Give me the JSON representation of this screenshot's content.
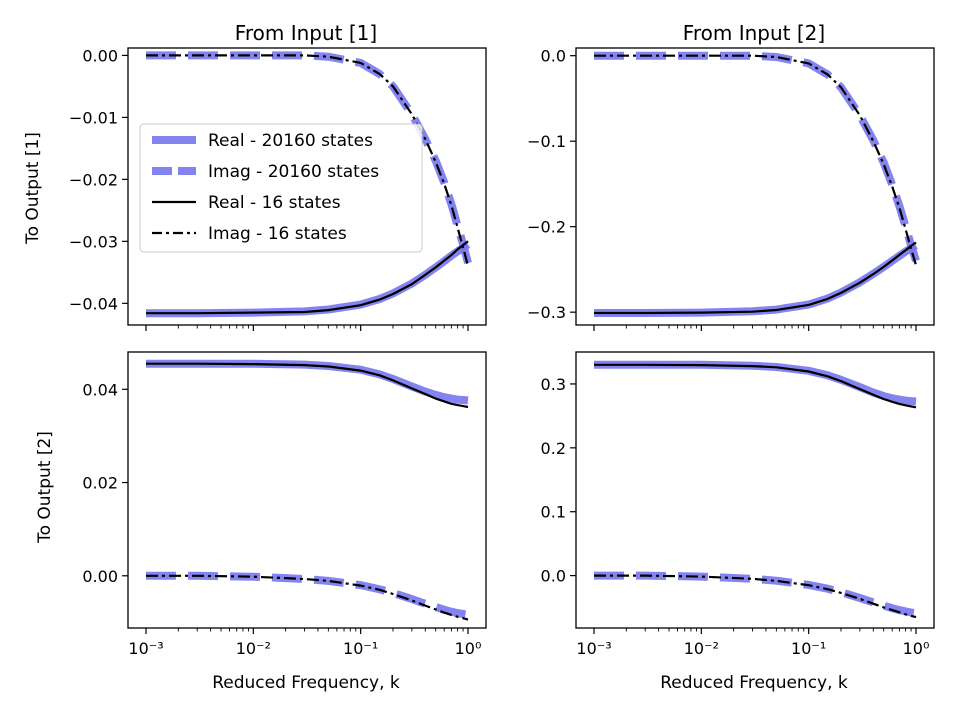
{
  "chart_data": [
    {
      "type": "line",
      "title": "From Input [1]",
      "xlabel": "",
      "ylabel": "To Output [1]",
      "xscale": "log",
      "xlim": [
        0.001,
        1.0
      ],
      "ylim": [
        -0.0435,
        0.0012
      ],
      "yticks": [
        0.0,
        -0.01,
        -0.02,
        -0.03,
        -0.04
      ],
      "ytick_labels": [
        "0.00",
        "−0.01",
        "−0.02",
        "−0.03",
        "−0.04"
      ],
      "xtick_labels": false,
      "grid": false,
      "legend": true,
      "legend_placement": "center-left",
      "series": [
        {
          "name": "Real - 20160 states",
          "style": "thick-solid",
          "color": "#7777ee",
          "x": [
            0.001,
            0.003,
            0.01,
            0.03,
            0.05,
            0.1,
            0.15,
            0.2,
            0.3,
            0.4,
            0.5,
            0.6,
            0.7,
            0.8,
            0.9,
            1.0
          ],
          "y": [
            -0.0416,
            -0.0416,
            -0.0415,
            -0.0413,
            -0.041,
            -0.0402,
            -0.0393,
            -0.0384,
            -0.0368,
            -0.0354,
            -0.0342,
            -0.0332,
            -0.0323,
            -0.0316,
            -0.031,
            -0.0305
          ]
        },
        {
          "name": "Imag - 20160 states",
          "style": "thick-dashed",
          "color": "#7777ee",
          "x": [
            0.001,
            0.003,
            0.01,
            0.03,
            0.05,
            0.1,
            0.15,
            0.2,
            0.3,
            0.4,
            0.5,
            0.6,
            0.7,
            0.8,
            0.9,
            1.0
          ],
          "y": [
            0.0,
            0.0,
            0.0,
            0.0,
            -0.0002,
            -0.0012,
            -0.003,
            -0.005,
            -0.0095,
            -0.0135,
            -0.017,
            -0.0205,
            -0.024,
            -0.0275,
            -0.0305,
            -0.0335
          ]
        },
        {
          "name": "Real - 16 states",
          "style": "solid",
          "color": "#000000",
          "x": [
            0.001,
            0.003,
            0.01,
            0.03,
            0.05,
            0.1,
            0.15,
            0.2,
            0.3,
            0.4,
            0.5,
            0.6,
            0.7,
            0.8,
            0.9,
            1.0
          ],
          "y": [
            -0.0416,
            -0.0416,
            -0.0415,
            -0.0414,
            -0.0411,
            -0.0403,
            -0.0394,
            -0.0385,
            -0.0369,
            -0.0354,
            -0.0342,
            -0.0331,
            -0.0322,
            -0.0313,
            -0.0306,
            -0.03
          ]
        },
        {
          "name": "Imag - 16 states",
          "style": "dashdot",
          "color": "#000000",
          "x": [
            0.001,
            0.003,
            0.01,
            0.03,
            0.05,
            0.1,
            0.15,
            0.2,
            0.3,
            0.4,
            0.5,
            0.6,
            0.7,
            0.8,
            0.9,
            1.0
          ],
          "y": [
            0.0,
            0.0,
            0.0,
            0.0,
            -0.0002,
            -0.0012,
            -0.003,
            -0.005,
            -0.0095,
            -0.0135,
            -0.0172,
            -0.0207,
            -0.0242,
            -0.0278,
            -0.031,
            -0.034
          ]
        }
      ]
    },
    {
      "type": "line",
      "title": "From Input [2]",
      "xlabel": "",
      "ylabel": "",
      "xscale": "log",
      "xlim": [
        0.001,
        1.0
      ],
      "ylim": [
        -0.315,
        0.009
      ],
      "yticks": [
        0.0,
        -0.1,
        -0.2,
        -0.3
      ],
      "ytick_labels": [
        "0.0",
        "−0.1",
        "−0.2",
        "−0.3"
      ],
      "xtick_labels": false,
      "grid": false,
      "legend": false,
      "series": [
        {
          "name": "Real - 20160 states",
          "style": "thick-solid",
          "color": "#7777ee",
          "x": [
            0.001,
            0.003,
            0.01,
            0.03,
            0.05,
            0.1,
            0.15,
            0.2,
            0.3,
            0.4,
            0.5,
            0.6,
            0.7,
            0.8,
            0.9,
            1.0
          ],
          "y": [
            -0.301,
            -0.301,
            -0.3005,
            -0.299,
            -0.297,
            -0.291,
            -0.284,
            -0.277,
            -0.265,
            -0.255,
            -0.247,
            -0.24,
            -0.234,
            -0.229,
            -0.225,
            -0.222
          ]
        },
        {
          "name": "Imag - 20160 states",
          "style": "thick-dashed",
          "color": "#7777ee",
          "x": [
            0.001,
            0.003,
            0.01,
            0.03,
            0.05,
            0.1,
            0.15,
            0.2,
            0.3,
            0.4,
            0.5,
            0.6,
            0.7,
            0.8,
            0.9,
            1.0
          ],
          "y": [
            0.0,
            0.0,
            0.0,
            0.0,
            -0.0015,
            -0.009,
            -0.022,
            -0.037,
            -0.07,
            -0.099,
            -0.125,
            -0.151,
            -0.176,
            -0.2,
            -0.222,
            -0.24
          ]
        },
        {
          "name": "Real - 16 states",
          "style": "solid",
          "color": "#000000",
          "x": [
            0.001,
            0.003,
            0.01,
            0.03,
            0.05,
            0.1,
            0.15,
            0.2,
            0.3,
            0.4,
            0.5,
            0.6,
            0.7,
            0.8,
            0.9,
            1.0
          ],
          "y": [
            -0.301,
            -0.301,
            -0.3005,
            -0.2995,
            -0.2975,
            -0.2915,
            -0.2845,
            -0.2775,
            -0.2655,
            -0.2555,
            -0.247,
            -0.2395,
            -0.233,
            -0.2275,
            -0.2225,
            -0.2185
          ]
        },
        {
          "name": "Imag - 16 states",
          "style": "dashdot",
          "color": "#000000",
          "x": [
            0.001,
            0.003,
            0.01,
            0.03,
            0.05,
            0.1,
            0.15,
            0.2,
            0.3,
            0.4,
            0.5,
            0.6,
            0.7,
            0.8,
            0.9,
            1.0
          ],
          "y": [
            0.0,
            0.0,
            0.0,
            0.0,
            -0.0015,
            -0.009,
            -0.022,
            -0.037,
            -0.07,
            -0.1,
            -0.127,
            -0.153,
            -0.178,
            -0.203,
            -0.226,
            -0.245
          ]
        }
      ]
    },
    {
      "type": "line",
      "title": "",
      "xlabel": "Reduced Frequency, k",
      "ylabel": "To Output [2]",
      "xscale": "log",
      "xlim": [
        0.001,
        1.0
      ],
      "ylim": [
        -0.0112,
        0.048
      ],
      "yticks": [
        0.0,
        0.02,
        0.04
      ],
      "ytick_labels": [
        "0.00",
        "0.02",
        "0.04"
      ],
      "xtick_labels": [
        "10⁻³",
        "10⁻²",
        "10⁻¹",
        "10⁰"
      ],
      "grid": false,
      "legend": false,
      "series": [
        {
          "name": "Real - 20160 states",
          "style": "thick-solid",
          "color": "#7777ee",
          "x": [
            0.001,
            0.003,
            0.01,
            0.03,
            0.05,
            0.1,
            0.15,
            0.2,
            0.3,
            0.4,
            0.5,
            0.6,
            0.7,
            0.8,
            0.9,
            1.0
          ],
          "y": [
            0.0455,
            0.0455,
            0.0455,
            0.0453,
            0.045,
            0.0442,
            0.0432,
            0.0422,
            0.0406,
            0.0395,
            0.0388,
            0.0383,
            0.038,
            0.0378,
            0.0377,
            0.0376
          ]
        },
        {
          "name": "Imag - 20160 states",
          "style": "thick-dashed",
          "color": "#7777ee",
          "x": [
            0.001,
            0.003,
            0.01,
            0.03,
            0.05,
            0.1,
            0.15,
            0.2,
            0.3,
            0.4,
            0.5,
            0.6,
            0.7,
            0.8,
            0.9,
            1.0
          ],
          "y": [
            0.0,
            0.0,
            -0.0002,
            -0.0007,
            -0.0011,
            -0.002,
            -0.0029,
            -0.0037,
            -0.005,
            -0.006,
            -0.0067,
            -0.0073,
            -0.0077,
            -0.008,
            -0.0082,
            -0.0084
          ]
        },
        {
          "name": "Real - 16 states",
          "style": "solid",
          "color": "#000000",
          "x": [
            0.001,
            0.003,
            0.01,
            0.03,
            0.05,
            0.1,
            0.15,
            0.2,
            0.3,
            0.4,
            0.5,
            0.6,
            0.7,
            0.8,
            0.9,
            1.0
          ],
          "y": [
            0.0455,
            0.0455,
            0.0454,
            0.0452,
            0.0449,
            0.044,
            0.043,
            0.0419,
            0.0402,
            0.039,
            0.038,
            0.0374,
            0.0369,
            0.0366,
            0.0364,
            0.0362
          ]
        },
        {
          "name": "Imag - 16 states",
          "style": "dashdot",
          "color": "#000000",
          "x": [
            0.001,
            0.003,
            0.01,
            0.03,
            0.05,
            0.1,
            0.15,
            0.2,
            0.3,
            0.4,
            0.5,
            0.6,
            0.7,
            0.8,
            0.9,
            1.0
          ],
          "y": [
            0.0,
            0.0,
            -0.0002,
            -0.0007,
            -0.0011,
            -0.0021,
            -0.003,
            -0.0039,
            -0.0053,
            -0.0064,
            -0.0072,
            -0.0079,
            -0.0084,
            -0.0088,
            -0.0091,
            -0.0094
          ]
        }
      ]
    },
    {
      "type": "line",
      "title": "",
      "xlabel": "Reduced Frequency, k",
      "ylabel": "",
      "xscale": "log",
      "xlim": [
        0.001,
        1.0
      ],
      "ylim": [
        -0.082,
        0.35
      ],
      "yticks": [
        0.0,
        0.1,
        0.2,
        0.3
      ],
      "ytick_labels": [
        "0.0",
        "0.1",
        "0.2",
        "0.3"
      ],
      "xtick_labels": [
        "10⁻³",
        "10⁻²",
        "10⁻¹",
        "10⁰"
      ],
      "grid": false,
      "legend": false,
      "series": [
        {
          "name": "Real - 20160 states",
          "style": "thick-solid",
          "color": "#7777ee",
          "x": [
            0.001,
            0.003,
            0.01,
            0.03,
            0.05,
            0.1,
            0.15,
            0.2,
            0.3,
            0.4,
            0.5,
            0.6,
            0.7,
            0.8,
            0.9,
            1.0
          ],
          "y": [
            0.33,
            0.33,
            0.33,
            0.3285,
            0.3265,
            0.3205,
            0.3135,
            0.3065,
            0.295,
            0.2865,
            0.281,
            0.2775,
            0.2755,
            0.274,
            0.2732,
            0.2725
          ]
        },
        {
          "name": "Imag - 20160 states",
          "style": "thick-dashed",
          "color": "#7777ee",
          "x": [
            0.001,
            0.003,
            0.01,
            0.03,
            0.05,
            0.1,
            0.15,
            0.2,
            0.3,
            0.4,
            0.5,
            0.6,
            0.7,
            0.8,
            0.9,
            1.0
          ],
          "y": [
            0.0,
            0.0,
            -0.0015,
            -0.005,
            -0.008,
            -0.0145,
            -0.0205,
            -0.026,
            -0.035,
            -0.042,
            -0.047,
            -0.051,
            -0.054,
            -0.056,
            -0.0578,
            -0.059
          ]
        },
        {
          "name": "Real - 16 states",
          "style": "solid",
          "color": "#000000",
          "x": [
            0.001,
            0.003,
            0.01,
            0.03,
            0.05,
            0.1,
            0.15,
            0.2,
            0.3,
            0.4,
            0.5,
            0.6,
            0.7,
            0.8,
            0.9,
            1.0
          ],
          "y": [
            0.33,
            0.33,
            0.3295,
            0.328,
            0.326,
            0.3195,
            0.312,
            0.3045,
            0.292,
            0.283,
            0.2765,
            0.272,
            0.2688,
            0.2665,
            0.2648,
            0.2635
          ]
        },
        {
          "name": "Imag - 16 states",
          "style": "dashdot",
          "color": "#000000",
          "x": [
            0.001,
            0.003,
            0.01,
            0.03,
            0.05,
            0.1,
            0.15,
            0.2,
            0.3,
            0.4,
            0.5,
            0.6,
            0.7,
            0.8,
            0.9,
            1.0
          ],
          "y": [
            0.0,
            0.0,
            -0.0015,
            -0.005,
            -0.0082,
            -0.015,
            -0.0213,
            -0.027,
            -0.0365,
            -0.044,
            -0.0497,
            -0.054,
            -0.0575,
            -0.0605,
            -0.063,
            -0.065
          ]
        }
      ]
    }
  ]
}
